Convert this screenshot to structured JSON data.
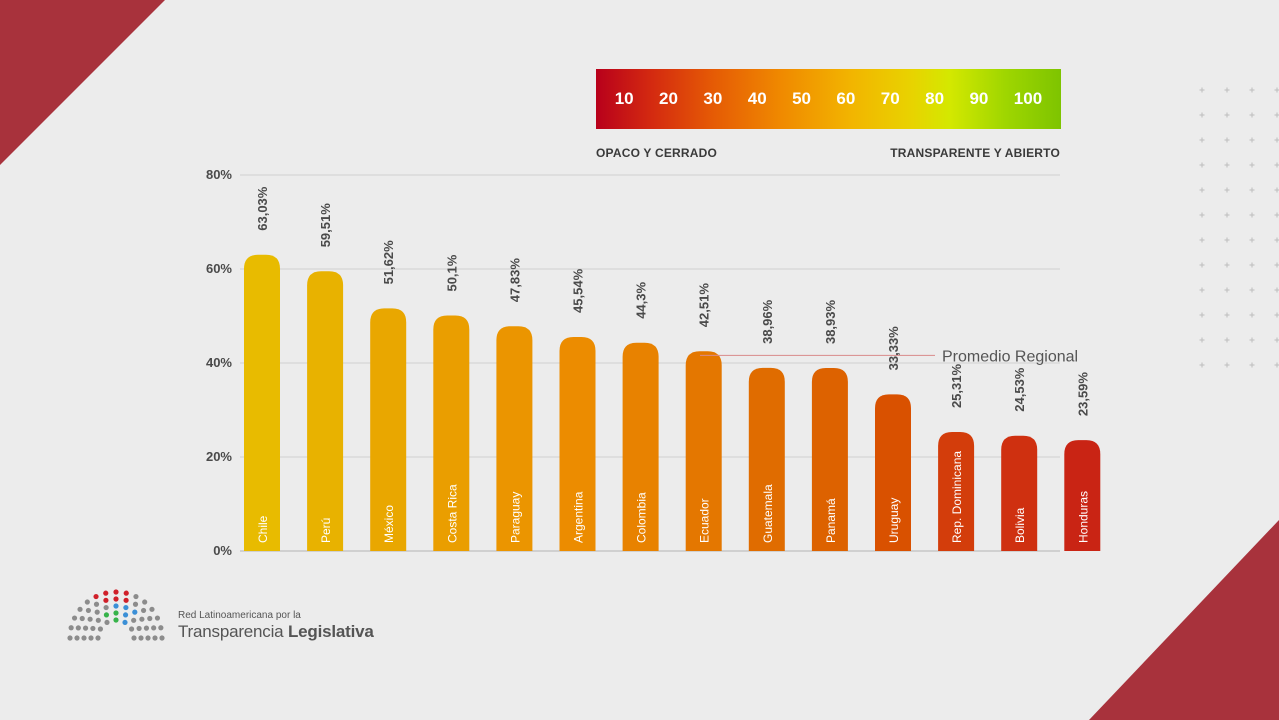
{
  "scale": {
    "ticks": [
      "10",
      "20",
      "30",
      "40",
      "50",
      "60",
      "70",
      "80",
      "90",
      "100"
    ],
    "left_label": "OPACO Y CERRADO",
    "right_label": "TRANSPARENTE Y  ABIERTO"
  },
  "chart_data": {
    "type": "bar",
    "title": "",
    "xlabel": "",
    "ylabel": "",
    "ylim": [
      0,
      80
    ],
    "y_ticks": [
      "80%",
      "60%",
      "40%",
      "20%",
      "0%"
    ],
    "y_tick_values": [
      80,
      60,
      40,
      20,
      0
    ],
    "categories": [
      "Chile",
      "Perú",
      "México",
      "Costa Rica",
      "Paraguay",
      "Argentina",
      "Colombia",
      "Ecuador",
      "Guatemala",
      "Panamá",
      "Uruguay",
      "Rep. Dominicana",
      "Bolivia",
      "Honduras"
    ],
    "values": [
      63.03,
      59.51,
      51.62,
      50.1,
      47.83,
      45.54,
      44.3,
      42.51,
      38.96,
      38.93,
      33.33,
      25.31,
      24.53,
      23.59
    ],
    "value_labels": [
      "63,03%",
      "59,51%",
      "51,62%",
      "50,1%",
      "47,83%",
      "45,54%",
      "44,3%",
      "42,51%",
      "38,96%",
      "38,93%",
      "33,33%",
      "25,31%",
      "24,53%",
      "23,59%"
    ],
    "bar_colors": [
      "#e8bb00",
      "#e8b200",
      "#e9a700",
      "#ea9e00",
      "#eb9500",
      "#ec8c00",
      "#e88200",
      "#e47700",
      "#e06c00",
      "#dd6200",
      "#d95100",
      "#d33d0b",
      "#cf3010",
      "#c92414"
    ],
    "reference_line": {
      "label": "Promedio Regional",
      "value": 41.2
    }
  },
  "logo": {
    "line1": "Red Latinoamericana por la",
    "line2a": "Transparencia ",
    "line2b": "Legislativa"
  },
  "colors": {
    "corner": "#a8323c",
    "background": "#ececec"
  }
}
